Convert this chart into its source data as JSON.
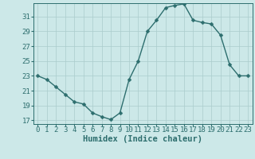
{
  "x": [
    0,
    1,
    2,
    3,
    4,
    5,
    6,
    7,
    8,
    9,
    10,
    11,
    12,
    13,
    14,
    15,
    16,
    17,
    18,
    19,
    20,
    21,
    22,
    23
  ],
  "y": [
    23,
    22.5,
    21.5,
    20.5,
    19.5,
    19.2,
    18.0,
    17.5,
    17.1,
    18.0,
    22.5,
    25.0,
    29.0,
    30.5,
    32.2,
    32.5,
    32.7,
    30.5,
    30.2,
    30.0,
    28.5,
    24.5,
    23.0,
    23.0
  ],
  "line_color": "#2d6e6e",
  "marker": "D",
  "markersize": 2.5,
  "bg_color": "#cce8e8",
  "grid_color": "#aacccc",
  "xlabel": "Humidex (Indice chaleur)",
  "ylim": [
    16.5,
    32.8
  ],
  "xlim": [
    -0.5,
    23.5
  ],
  "yticks": [
    17,
    19,
    21,
    23,
    25,
    27,
    29,
    31
  ],
  "xticks": [
    0,
    1,
    2,
    3,
    4,
    5,
    6,
    7,
    8,
    9,
    10,
    11,
    12,
    13,
    14,
    15,
    16,
    17,
    18,
    19,
    20,
    21,
    22,
    23
  ],
  "xtick_labels": [
    "0",
    "1",
    "2",
    "3",
    "4",
    "5",
    "6",
    "7",
    "8",
    "9",
    "10",
    "11",
    "12",
    "13",
    "14",
    "15",
    "16",
    "17",
    "18",
    "19",
    "20",
    "21",
    "22",
    "23"
  ],
  "tick_color": "#2d6e6e",
  "spine_color": "#2d6e6e",
  "label_fontsize": 7.5,
  "tick_fontsize": 6.5
}
